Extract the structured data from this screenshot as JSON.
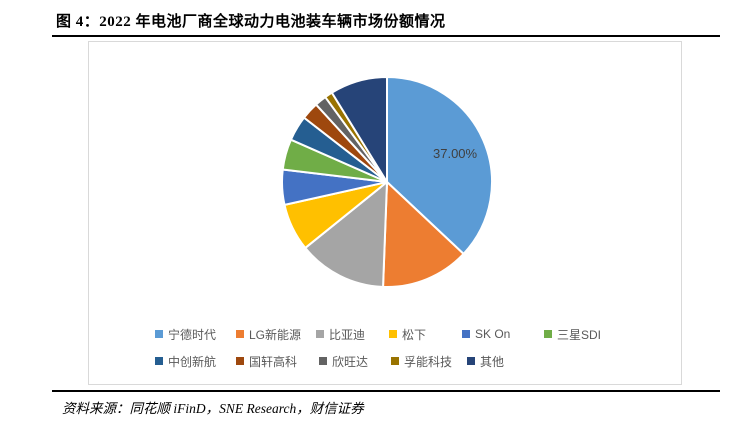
{
  "header": {
    "title": "图 4：2022 年电池厂商全球动力电池装车辆市场份额情况"
  },
  "footer": {
    "source": "资料来源：同花顺 iFinD，SNE Research，财信证券"
  },
  "chart_data": {
    "type": "pie",
    "title": "2022 年电池厂商全球动力电池装车辆市场份额情况",
    "unit": "percent",
    "start_angle_deg": 0,
    "direction": "clockwise",
    "legend_position": "bottom",
    "visible_data_label": "37.00%",
    "series": [
      {
        "name": "宁德时代",
        "value": 37.0,
        "color": "#5B9BD5",
        "label": "37.00%"
      },
      {
        "name": "LG新能源",
        "value": 13.6,
        "color": "#ED7D31",
        "label": ""
      },
      {
        "name": "比亚迪",
        "value": 13.6,
        "color": "#A5A5A5",
        "label": ""
      },
      {
        "name": "松下",
        "value": 7.3,
        "color": "#FFC000",
        "label": ""
      },
      {
        "name": "SK On",
        "value": 5.4,
        "color": "#4472C4",
        "label": ""
      },
      {
        "name": "三星SDI",
        "value": 4.7,
        "color": "#70AD47",
        "label": ""
      },
      {
        "name": "中创新航",
        "value": 3.9,
        "color": "#255E91",
        "label": ""
      },
      {
        "name": "国轩高科",
        "value": 2.7,
        "color": "#9E480E",
        "label": ""
      },
      {
        "name": "欣旺达",
        "value": 1.8,
        "color": "#636363",
        "label": ""
      },
      {
        "name": "孚能科技",
        "value": 1.2,
        "color": "#997300",
        "label": ""
      },
      {
        "name": "其他",
        "value": 8.8,
        "color": "#264478",
        "label": ""
      }
    ]
  },
  "style": {
    "slice_border_color": "#FFFFFF",
    "label_color": "#404040",
    "legend_text_color": "#595959"
  }
}
